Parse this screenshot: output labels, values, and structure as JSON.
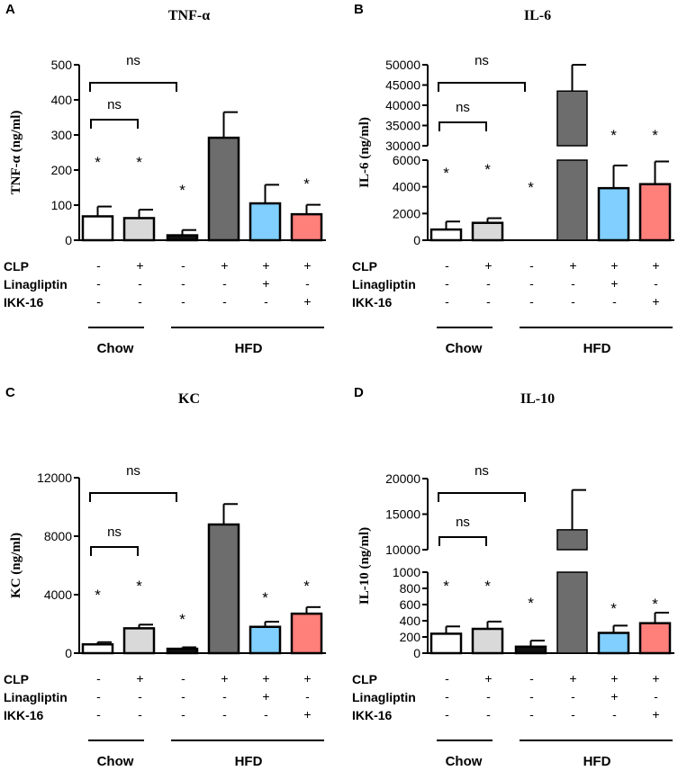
{
  "colors": {
    "bars": [
      "#ffffff",
      "#d9d9d9",
      "#111111",
      "#6d6d6d",
      "#80cfff",
      "#ff7f7b"
    ],
    "axis": "#000000"
  },
  "conditions": {
    "row_labels": [
      "CLP",
      "Linagliptin",
      "IKK-16"
    ],
    "signs": [
      [
        "-",
        "+",
        "-",
        "+",
        "+",
        "+"
      ],
      [
        "-",
        "-",
        "-",
        "-",
        "+",
        "-"
      ],
      [
        "-",
        "-",
        "-",
        "-",
        "-",
        "+"
      ]
    ],
    "groups": [
      "Chow",
      "HFD"
    ]
  },
  "chart_data": [
    {
      "letter": "A",
      "type": "bar",
      "title": "TNF-α",
      "ylabel": "TNF-α (ng/ml)",
      "ylim": [
        0,
        500
      ],
      "yticks": [
        "0",
        "100",
        "200",
        "300",
        "400",
        "500"
      ],
      "values": [
        68,
        63,
        14,
        292,
        105,
        74
      ],
      "errors": [
        28,
        24,
        15,
        73,
        53,
        27
      ],
      "significance": [
        "*",
        "*",
        "*",
        "",
        "",
        "*"
      ],
      "brackets": [
        "ns",
        "ns"
      ],
      "axis_break": null
    },
    {
      "letter": "B",
      "type": "bar",
      "title": "IL-6",
      "ylabel": "IL-6 (ng/ml)",
      "ylim": [
        0,
        50000
      ],
      "yticks": [
        "0",
        "2000",
        "4000",
        "6000",
        "30000",
        "35000",
        "40000",
        "45000",
        "50000"
      ],
      "values": [
        800,
        1300,
        0,
        43500,
        3900,
        4200
      ],
      "errors": [
        600,
        350,
        0,
        6500,
        1700,
        1700
      ],
      "significance": [
        "*",
        "*",
        "*",
        "",
        "*",
        "*"
      ],
      "brackets": [
        "ns",
        "ns"
      ],
      "axis_break": {
        "low_max": 6000,
        "high_min": 30000
      }
    },
    {
      "letter": "C",
      "type": "bar",
      "title": "KC",
      "ylabel": "KC (ng/ml)",
      "ylim": [
        0,
        12000
      ],
      "yticks": [
        "0",
        "4000",
        "8000",
        "12000"
      ],
      "values": [
        600,
        1700,
        300,
        8800,
        1800,
        2700
      ],
      "errors": [
        150,
        250,
        100,
        1400,
        350,
        450
      ],
      "significance": [
        "*",
        "*",
        "*",
        "",
        "*",
        "*"
      ],
      "brackets": [
        "ns",
        "ns"
      ],
      "axis_break": null
    },
    {
      "letter": "D",
      "type": "bar",
      "title": "IL-10",
      "ylabel": "IL-10 (ng/ml)",
      "ylim": [
        0,
        20000
      ],
      "yticks": [
        "0",
        "200",
        "400",
        "600",
        "800",
        "1000",
        "10000",
        "15000",
        "20000"
      ],
      "values": [
        240,
        300,
        80,
        12800,
        250,
        370
      ],
      "errors": [
        90,
        90,
        75,
        5600,
        90,
        130
      ],
      "significance": [
        "*",
        "*",
        "*",
        "",
        "*",
        "*"
      ],
      "brackets": [
        "ns",
        "ns"
      ],
      "axis_break": {
        "low_max": 1000,
        "high_min": 10000
      }
    }
  ]
}
